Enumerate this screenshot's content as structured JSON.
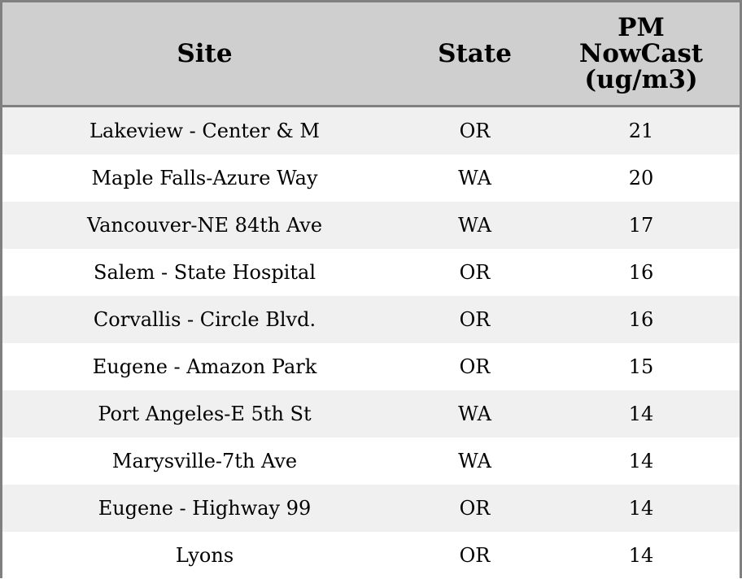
{
  "table": {
    "headers": [
      "Site",
      "State",
      "PM\nNowCast\n(ug/m3)"
    ],
    "header_lines": [
      "PM",
      "NowCast",
      "(ug/m3)"
    ],
    "rows": [
      [
        "Lakeview - Center & M",
        "OR",
        "21"
      ],
      [
        "Maple Falls-Azure Way",
        "WA",
        "20"
      ],
      [
        "Vancouver-NE 84th Ave",
        "WA",
        "17"
      ],
      [
        "Salem - State Hospital",
        "OR",
        "16"
      ],
      [
        "Corvallis - Circle Blvd.",
        "OR",
        "16"
      ],
      [
        "Eugene - Amazon Park",
        "OR",
        "15"
      ],
      [
        "Port Angeles-E 5th St",
        "WA",
        "14"
      ],
      [
        "Marysville-7th Ave",
        "WA",
        "14"
      ],
      [
        "Eugene - Highway 99",
        "OR",
        "14"
      ],
      [
        "Lyons",
        "OR",
        "14"
      ]
    ]
  },
  "colors": {
    "header_bg": "#cfcfcf",
    "alt_row_bg": "#f0f0f0",
    "border": "#808080"
  }
}
